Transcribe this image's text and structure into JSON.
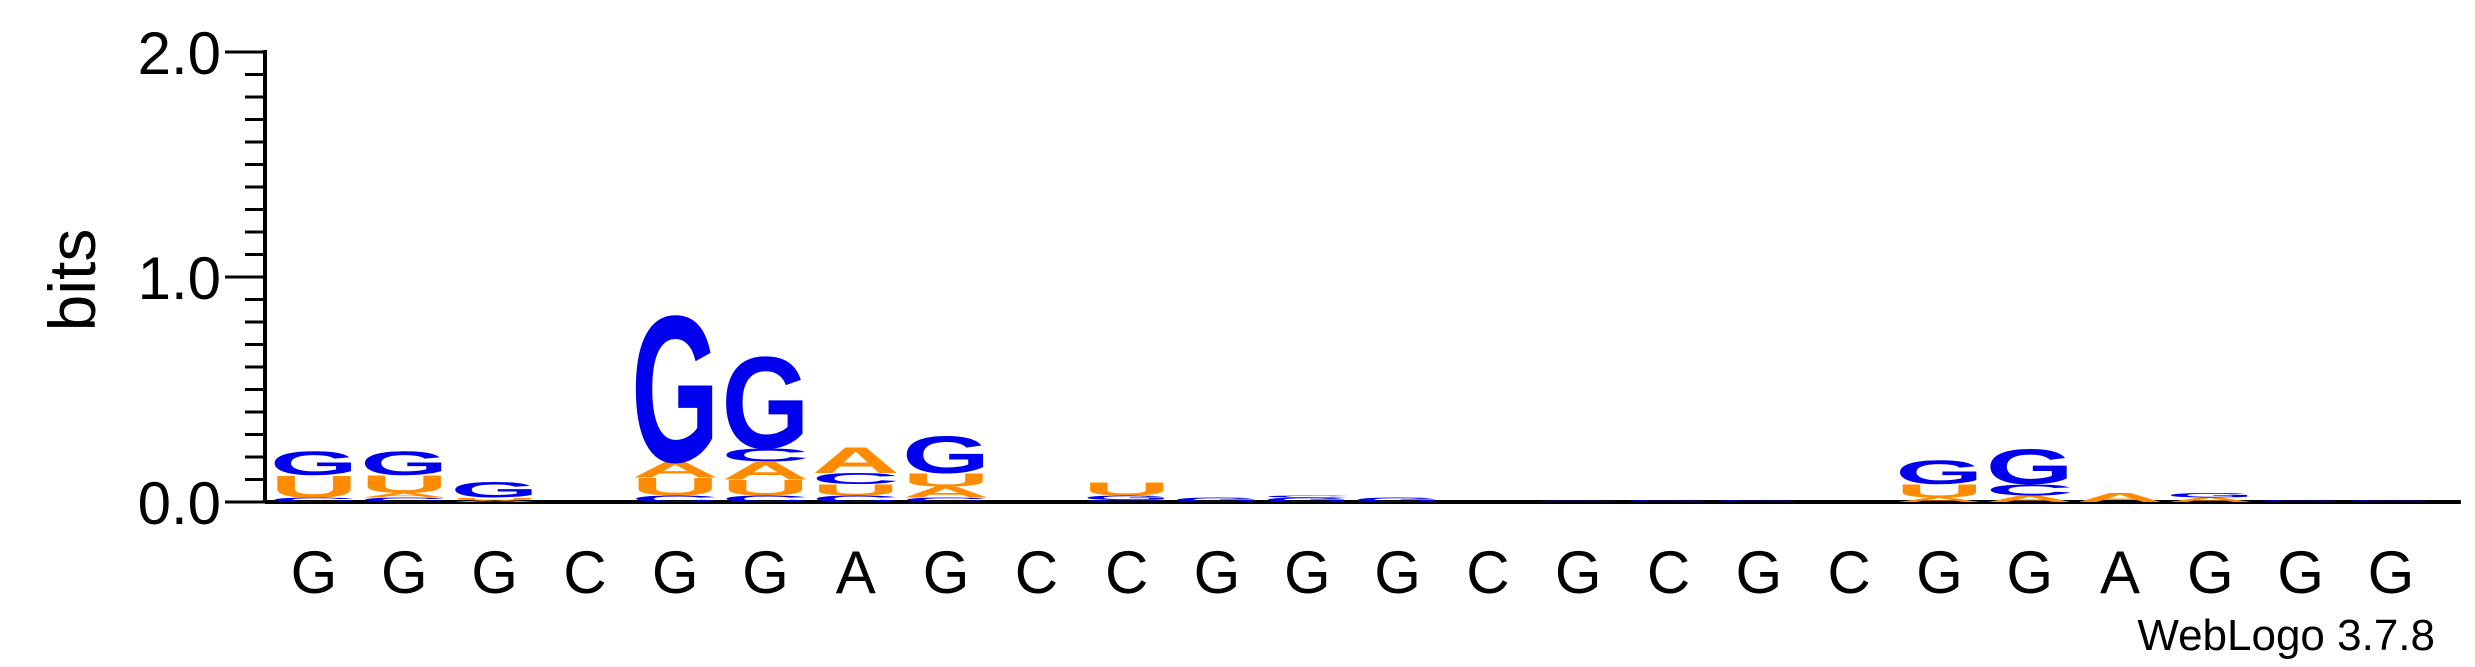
{
  "chart_data": {
    "type": "sequence-logo",
    "ylabel": "bits",
    "ylim": [
      0,
      2.0
    ],
    "yticks": [
      {
        "value": 0.0,
        "label": "0.0"
      },
      {
        "value": 1.0,
        "label": "1.0"
      },
      {
        "value": 2.0,
        "label": "2.0"
      }
    ],
    "positions": [
      "G",
      "G",
      "G",
      "C",
      "G",
      "G",
      "A",
      "G",
      "C",
      "C",
      "G",
      "G",
      "G",
      "C",
      "G",
      "C",
      "G",
      "C",
      "G",
      "G",
      "A",
      "G",
      "G",
      "G"
    ],
    "colors": {
      "G": "#0000ee",
      "C": "#0000ee",
      "A": "#ff8c00",
      "U": "#ff8c00"
    },
    "stacks": [
      [
        {
          "letter": "C",
          "bits": 0.02
        },
        {
          "letter": "U",
          "bits": 0.1
        },
        {
          "letter": "G",
          "bits": 0.11
        }
      ],
      [
        {
          "letter": "C",
          "bits": 0.02
        },
        {
          "letter": "A",
          "bits": 0.02
        },
        {
          "letter": "U",
          "bits": 0.08
        },
        {
          "letter": "G",
          "bits": 0.11
        }
      ],
      [
        {
          "letter": "A",
          "bits": 0.01
        },
        {
          "letter": "U",
          "bits": 0.01
        },
        {
          "letter": "G",
          "bits": 0.07
        }
      ],
      [],
      [
        {
          "letter": "C",
          "bits": 0.03
        },
        {
          "letter": "U",
          "bits": 0.08
        },
        {
          "letter": "A",
          "bits": 0.07
        },
        {
          "letter": "G",
          "bits": 0.67
        }
      ],
      [
        {
          "letter": "C",
          "bits": 0.03
        },
        {
          "letter": "U",
          "bits": 0.07
        },
        {
          "letter": "A",
          "bits": 0.08
        },
        {
          "letter": "C",
          "bits": 0.06
        },
        {
          "letter": "G",
          "bits": 0.42
        }
      ],
      [
        {
          "letter": "C",
          "bits": 0.03
        },
        {
          "letter": "U",
          "bits": 0.05
        },
        {
          "letter": "C",
          "bits": 0.05
        },
        {
          "letter": "A",
          "bits": 0.12
        }
      ],
      [
        {
          "letter": "C",
          "bits": 0.02
        },
        {
          "letter": "A",
          "bits": 0.05
        },
        {
          "letter": "U",
          "bits": 0.06
        },
        {
          "letter": "G",
          "bits": 0.17
        }
      ],
      [],
      [
        {
          "letter": "C",
          "bits": 0.01
        },
        {
          "letter": "G",
          "bits": 0.02
        },
        {
          "letter": "U",
          "bits": 0.06
        }
      ],
      [
        {
          "letter": "G",
          "bits": 0.02
        }
      ],
      [
        {
          "letter": "G",
          "bits": 0.02
        },
        {
          "letter": "C",
          "bits": 0.01
        }
      ],
      [
        {
          "letter": "G",
          "bits": 0.02
        }
      ],
      [],
      [
        {
          "letter": "G",
          "bits": 0.005
        }
      ],
      [
        {
          "letter": "G",
          "bits": 0.01
        }
      ],
      [
        {
          "letter": "G",
          "bits": 0.01
        }
      ],
      [],
      [
        {
          "letter": "A",
          "bits": 0.02
        },
        {
          "letter": "U",
          "bits": 0.06
        },
        {
          "letter": "G",
          "bits": 0.11
        }
      ],
      [
        {
          "letter": "A",
          "bits": 0.03
        },
        {
          "letter": "C",
          "bits": 0.05
        },
        {
          "letter": "G",
          "bits": 0.16
        }
      ],
      [
        {
          "letter": "A",
          "bits": 0.04
        }
      ],
      [
        {
          "letter": "A",
          "bits": 0.02
        },
        {
          "letter": "G",
          "bits": 0.02
        }
      ],
      [
        {
          "letter": "G",
          "bits": 0.01
        }
      ],
      [
        {
          "letter": "G",
          "bits": 0.01
        }
      ]
    ]
  },
  "credit": "WebLogo 3.7.8"
}
